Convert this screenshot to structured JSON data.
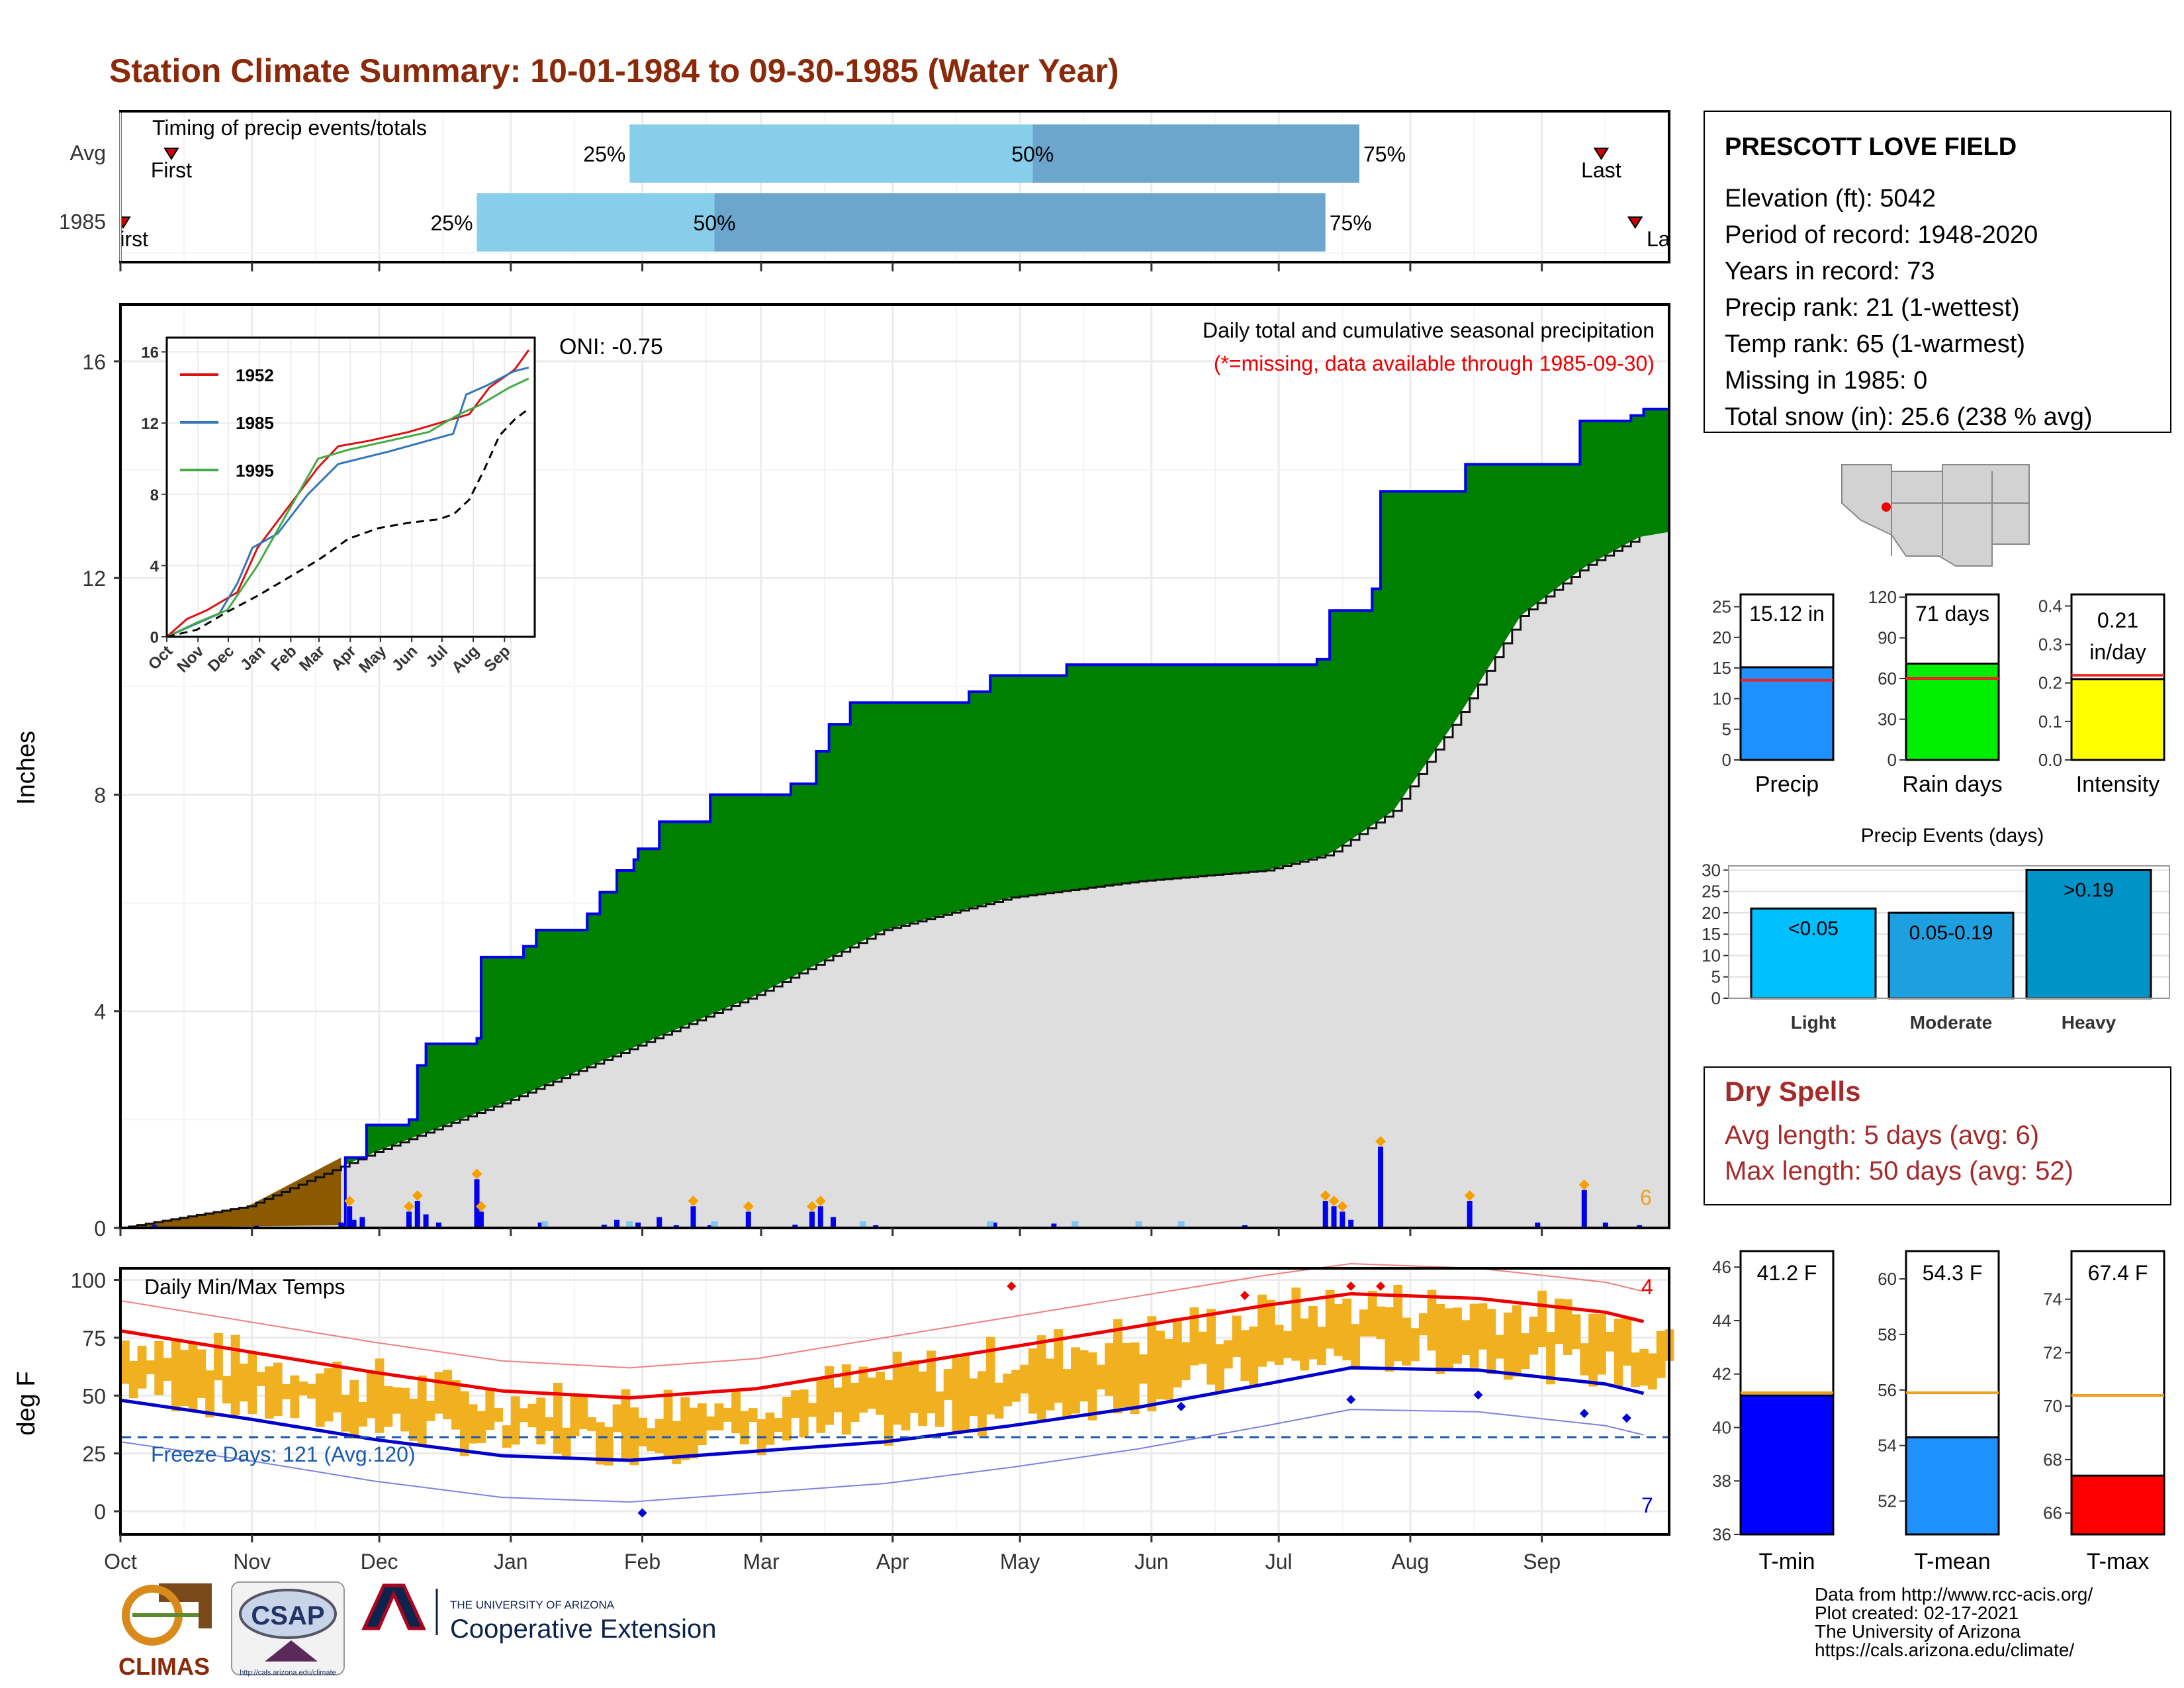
{
  "title": "Station Climate Summary: 10-01-1984 to 09-30-1985 (Water Year)",
  "colors": {
    "title": "#8B2A0A",
    "cum_fill": "#008000",
    "cum_line": "#0000EE",
    "avg_fill": "#DEDEDE",
    "brown": "#8B5A00",
    "bar_light": "#87CEEB",
    "bar_dark": "#6CA6CD",
    "temp_bar": "#F0B020",
    "tmax": "#EE0000",
    "tmin": "#0000CC",
    "dry": "#A52A2A"
  },
  "timing": {
    "label": "Timing of precip events/totals",
    "rows": [
      {
        "name": "Avg",
        "p25": "25%",
        "p50": "50%",
        "p75": "75%",
        "first": "First",
        "last": "Last",
        "first_day": 12,
        "p25_day": 120,
        "p50_day": 215,
        "p75_day": 292,
        "last_day": 349
      },
      {
        "name": "1985",
        "p25": "25%",
        "p50": "50%",
        "p75": "75%",
        "first": "First",
        "last": "Last",
        "first_day": 0,
        "p25_day": 84,
        "p50_day": 140,
        "p75_day": 284,
        "last_day": 357
      }
    ]
  },
  "precip_panel": {
    "ylabel": "Inches",
    "yticks": [
      "0",
      "4",
      "8",
      "12",
      "16"
    ],
    "note_title": "Daily total and cumulative seasonal precipitation",
    "note_missing": "(*=missing, data available through 1985-09-30)",
    "oni": "ONI: -0.75",
    "extreme_count": "6",
    "chart_data": {
      "type": "area",
      "x_unit": "day of water year",
      "cumulative_1985": [
        [
          0,
          0
        ],
        [
          52,
          0.05
        ],
        [
          53,
          1.3
        ],
        [
          58,
          1.9
        ],
        [
          67,
          1.9
        ],
        [
          68,
          2.0
        ],
        [
          70,
          3.0
        ],
        [
          72,
          3.4
        ],
        [
          84,
          3.5
        ],
        [
          85,
          5.0
        ],
        [
          95,
          5.2
        ],
        [
          98,
          5.5
        ],
        [
          108,
          5.5
        ],
        [
          110,
          5.8
        ],
        [
          113,
          6.2
        ],
        [
          117,
          6.6
        ],
        [
          121,
          6.8
        ],
        [
          122,
          7.0
        ],
        [
          127,
          7.5
        ],
        [
          138,
          7.5
        ],
        [
          139,
          8.0
        ],
        [
          156,
          8.0
        ],
        [
          158,
          8.2
        ],
        [
          164,
          8.8
        ],
        [
          167,
          9.3
        ],
        [
          172,
          9.7
        ],
        [
          197,
          9.7
        ],
        [
          200,
          9.9
        ],
        [
          205,
          10.2
        ],
        [
          220,
          10.2
        ],
        [
          223,
          10.4
        ],
        [
          280,
          10.4
        ],
        [
          282,
          10.5
        ],
        [
          285,
          11.4
        ],
        [
          295,
          11.8
        ],
        [
          297,
          13.6
        ],
        [
          316,
          13.6
        ],
        [
          317,
          14.1
        ],
        [
          342,
          14.1
        ],
        [
          344,
          14.9
        ],
        [
          356,
          15.0
        ],
        [
          359,
          15.12
        ]
      ],
      "average_cumulative": [
        [
          0,
          0
        ],
        [
          30,
          0.4
        ],
        [
          60,
          1.4
        ],
        [
          90,
          2.3
        ],
        [
          120,
          3.3
        ],
        [
          150,
          4.3
        ],
        [
          180,
          5.5
        ],
        [
          210,
          6.1
        ],
        [
          240,
          6.4
        ],
        [
          270,
          6.6
        ],
        [
          285,
          6.9
        ],
        [
          300,
          7.7
        ],
        [
          315,
          9.4
        ],
        [
          330,
          11.3
        ],
        [
          345,
          12.2
        ],
        [
          359,
          12.8
        ]
      ],
      "early_deficit": [
        [
          0,
          0
        ],
        [
          30,
          0.4
        ],
        [
          52,
          1.3
        ]
      ],
      "daily_precip": [
        [
          8,
          0.05
        ],
        [
          32,
          0.04
        ],
        [
          52,
          0.1
        ],
        [
          54,
          0.4
        ],
        [
          55,
          0.15
        ],
        [
          57,
          0.2
        ],
        [
          68,
          0.3
        ],
        [
          70,
          0.5
        ],
        [
          72,
          0.25
        ],
        [
          75,
          0.1
        ],
        [
          84,
          0.9
        ],
        [
          85,
          0.3
        ],
        [
          99,
          0.1
        ],
        [
          114,
          0.06
        ],
        [
          117,
          0.15
        ],
        [
          122,
          0.1
        ],
        [
          127,
          0.2
        ],
        [
          131,
          0.05
        ],
        [
          135,
          0.4
        ],
        [
          139,
          0.05
        ],
        [
          148,
          0.3
        ],
        [
          159,
          0.06
        ],
        [
          163,
          0.3
        ],
        [
          165,
          0.4
        ],
        [
          168,
          0.2
        ],
        [
          178,
          0.05
        ],
        [
          206,
          0.1
        ],
        [
          220,
          0.08
        ],
        [
          265,
          0.05
        ],
        [
          284,
          0.5
        ],
        [
          286,
          0.4
        ],
        [
          288,
          0.3
        ],
        [
          290,
          0.15
        ],
        [
          297,
          1.5
        ],
        [
          318,
          0.5
        ],
        [
          334,
          0.1
        ],
        [
          345,
          0.7
        ],
        [
          350,
          0.1
        ],
        [
          358,
          0.05
        ]
      ],
      "ylim": [
        0,
        16
      ]
    }
  },
  "inset": {
    "yticks": [
      "0",
      "4",
      "8",
      "12",
      "16"
    ],
    "xticks": [
      "Oct",
      "Nov",
      "Dec",
      "Jan",
      "Feb",
      "Mar",
      "Apr",
      "May",
      "Jun",
      "Jul",
      "Aug",
      "Sep"
    ],
    "legend": [
      "1952",
      "1985",
      "1995"
    ],
    "chart_data": {
      "type": "line",
      "series": [
        {
          "name": "1952",
          "color": "#DD1111",
          "points": [
            [
              0,
              0
            ],
            [
              20,
              1
            ],
            [
              40,
              1.5
            ],
            [
              70,
              2.5
            ],
            [
              90,
              5
            ],
            [
              110,
              6.5
            ],
            [
              130,
              8
            ],
            [
              150,
              9.5
            ],
            [
              170,
              10.7
            ],
            [
              200,
              11
            ],
            [
              240,
              11.5
            ],
            [
              270,
              12
            ],
            [
              300,
              12.5
            ],
            [
              320,
              14
            ],
            [
              345,
              15
            ],
            [
              359,
              16.1
            ]
          ]
        },
        {
          "name": "1985",
          "color": "#3377BB",
          "points": [
            [
              0,
              0
            ],
            [
              52,
              1.3
            ],
            [
              70,
              3
            ],
            [
              85,
              5
            ],
            [
              110,
              5.8
            ],
            [
              140,
              8
            ],
            [
              170,
              9.7
            ],
            [
              220,
              10.4
            ],
            [
              284,
              11.4
            ],
            [
              297,
              13.6
            ],
            [
              317,
              14.1
            ],
            [
              344,
              14.9
            ],
            [
              359,
              15.12
            ]
          ]
        },
        {
          "name": "1995",
          "color": "#44AA44",
          "points": [
            [
              0,
              0
            ],
            [
              30,
              0.8
            ],
            [
              60,
              1.5
            ],
            [
              90,
              4
            ],
            [
              120,
              7
            ],
            [
              150,
              10
            ],
            [
              180,
              10.5
            ],
            [
              220,
              11
            ],
            [
              260,
              11.5
            ],
            [
              290,
              12.5
            ],
            [
              310,
              13
            ],
            [
              340,
              14
            ],
            [
              359,
              14.5
            ]
          ]
        },
        {
          "name": "average",
          "color": "#000000",
          "dashed": true,
          "points": [
            [
              0,
              0
            ],
            [
              30,
              0.4
            ],
            [
              60,
              1.4
            ],
            [
              90,
              2.3
            ],
            [
              120,
              3.3
            ],
            [
              150,
              4.3
            ],
            [
              180,
              5.5
            ],
            [
              210,
              6.1
            ],
            [
              240,
              6.4
            ],
            [
              270,
              6.6
            ],
            [
              285,
              6.9
            ],
            [
              300,
              7.7
            ],
            [
              315,
              9.4
            ],
            [
              330,
              11.3
            ],
            [
              345,
              12.2
            ],
            [
              359,
              12.8
            ]
          ]
        }
      ],
      "ylim": [
        0,
        16
      ]
    }
  },
  "temp_panel": {
    "ylabel": "deg F",
    "label": "Daily Min/Max Temps",
    "yticks": [
      "0",
      "25",
      "50",
      "75",
      "100"
    ],
    "freeze_label": "Freeze Days: 121 (Avg.120)",
    "hot_count": "4",
    "cold_count": "7",
    "chart_data": {
      "type": "line",
      "freeze_line": 32,
      "tmax_avg": [
        [
          0,
          78
        ],
        [
          30,
          69
        ],
        [
          60,
          60
        ],
        [
          90,
          52
        ],
        [
          120,
          49
        ],
        [
          150,
          53
        ],
        [
          180,
          62
        ],
        [
          210,
          71
        ],
        [
          240,
          80
        ],
        [
          270,
          89
        ],
        [
          290,
          94
        ],
        [
          320,
          92
        ],
        [
          350,
          86
        ],
        [
          359,
          82
        ]
      ],
      "tmin_avg": [
        [
          0,
          48
        ],
        [
          30,
          40
        ],
        [
          60,
          31
        ],
        [
          90,
          24
        ],
        [
          120,
          22
        ],
        [
          150,
          26
        ],
        [
          180,
          30
        ],
        [
          210,
          37
        ],
        [
          240,
          45
        ],
        [
          270,
          55
        ],
        [
          290,
          62
        ],
        [
          320,
          61
        ],
        [
          350,
          55
        ],
        [
          359,
          51
        ]
      ],
      "ylim": [
        -10,
        105
      ]
    }
  },
  "xaxis_months": [
    "Oct",
    "Nov",
    "Dec",
    "Jan",
    "Feb",
    "Mar",
    "Apr",
    "May",
    "Jun",
    "Jul",
    "Aug",
    "Sep"
  ],
  "station": {
    "name": "PRESCOTT LOVE FIELD",
    "lines": [
      "Elevation (ft): 5042",
      "Period of record: 1948-2020",
      "Years in record: 73",
      "Precip rank: 21 (1-wettest)",
      "Temp rank: 65 (1-warmest)",
      "Missing in 1985: 0",
      "Total snow (in): 25.6 (238 % avg)"
    ]
  },
  "summary_bars": [
    {
      "label": "Precip",
      "value_text": "15.12 in",
      "value": 15.12,
      "avg": 13.0,
      "max": 27,
      "yticks": [
        "0",
        "5",
        "10",
        "15",
        "20",
        "25"
      ],
      "tick_vals": [
        0,
        5,
        10,
        15,
        20,
        25
      ],
      "color": "#1E90FF"
    },
    {
      "label": "Rain days",
      "value_text": "71 days",
      "value": 71,
      "avg": 60,
      "max": 122,
      "yticks": [
        "0",
        "30",
        "60",
        "90",
        "120"
      ],
      "tick_vals": [
        0,
        30,
        60,
        90,
        120
      ],
      "color": "#00EE00"
    },
    {
      "label": "Intensity",
      "value_text_1": "0.21",
      "value_text_2": "in/day",
      "value": 0.21,
      "avg": 0.22,
      "max": 0.43,
      "yticks": [
        "0.0",
        "0.1",
        "0.2",
        "0.3",
        "0.4"
      ],
      "tick_vals": [
        0,
        0.1,
        0.2,
        0.3,
        0.4
      ],
      "color": "#FFFF00"
    }
  ],
  "precip_events": {
    "title": "Precip Events (days)",
    "yticks": [
      "0",
      "5",
      "10",
      "15",
      "20",
      "25",
      "30"
    ],
    "chart_data": {
      "type": "bar",
      "categories": [
        "Light",
        "Moderate",
        "Heavy"
      ],
      "bar_labels": [
        "<0.05",
        "0.05-0.19",
        ">0.19"
      ],
      "values": [
        21,
        20,
        30
      ],
      "colors": [
        "#00BFFF",
        "#1EA0E0",
        "#0093C8"
      ],
      "ylim": [
        0,
        31
      ]
    }
  },
  "dry_spells": {
    "title": "Dry Spells",
    "avg": "Avg length: 5 days (avg: 6)",
    "max": "Max length: 50 days (avg: 52)"
  },
  "temp_bars": [
    {
      "label": "T-min",
      "value_text": "41.2 F",
      "value": 41.2,
      "avg": 41.3,
      "min": 36,
      "max": 46.6,
      "yticks": [
        "36",
        "38",
        "40",
        "42",
        "44",
        "46"
      ],
      "tick_vals": [
        36,
        38,
        40,
        42,
        44,
        46
      ],
      "color": "#0000FF"
    },
    {
      "label": "T-mean",
      "value_text": "54.3 F",
      "value": 54.3,
      "avg": 55.9,
      "min": 50.8,
      "max": 61,
      "yticks": [
        "52",
        "54",
        "56",
        "58",
        "60"
      ],
      "tick_vals": [
        52,
        54,
        56,
        58,
        60
      ],
      "color": "#1E90FF"
    },
    {
      "label": "T-max",
      "value_text": "67.4 F",
      "value": 67.4,
      "avg": 70.4,
      "min": 65.2,
      "max": 75.8,
      "yticks": [
        "66",
        "68",
        "70",
        "72",
        "74"
      ],
      "tick_vals": [
        66,
        68,
        70,
        72,
        74
      ],
      "color": "#FF0000"
    }
  ],
  "credits": [
    "Data from http://www.rcc-acis.org/",
    "Plot created: 02-17-2021",
    "The University of Arizona",
    "https://cals.arizona.edu/climate/"
  ],
  "logos": {
    "climas": "CLIMAS",
    "csap": "CSAP",
    "csap_url": "http://cals.arizona.edu/climate",
    "ua_top": "THE UNIVERSITY OF ARIZONA",
    "ua_bottom": "Cooperative Extension"
  }
}
